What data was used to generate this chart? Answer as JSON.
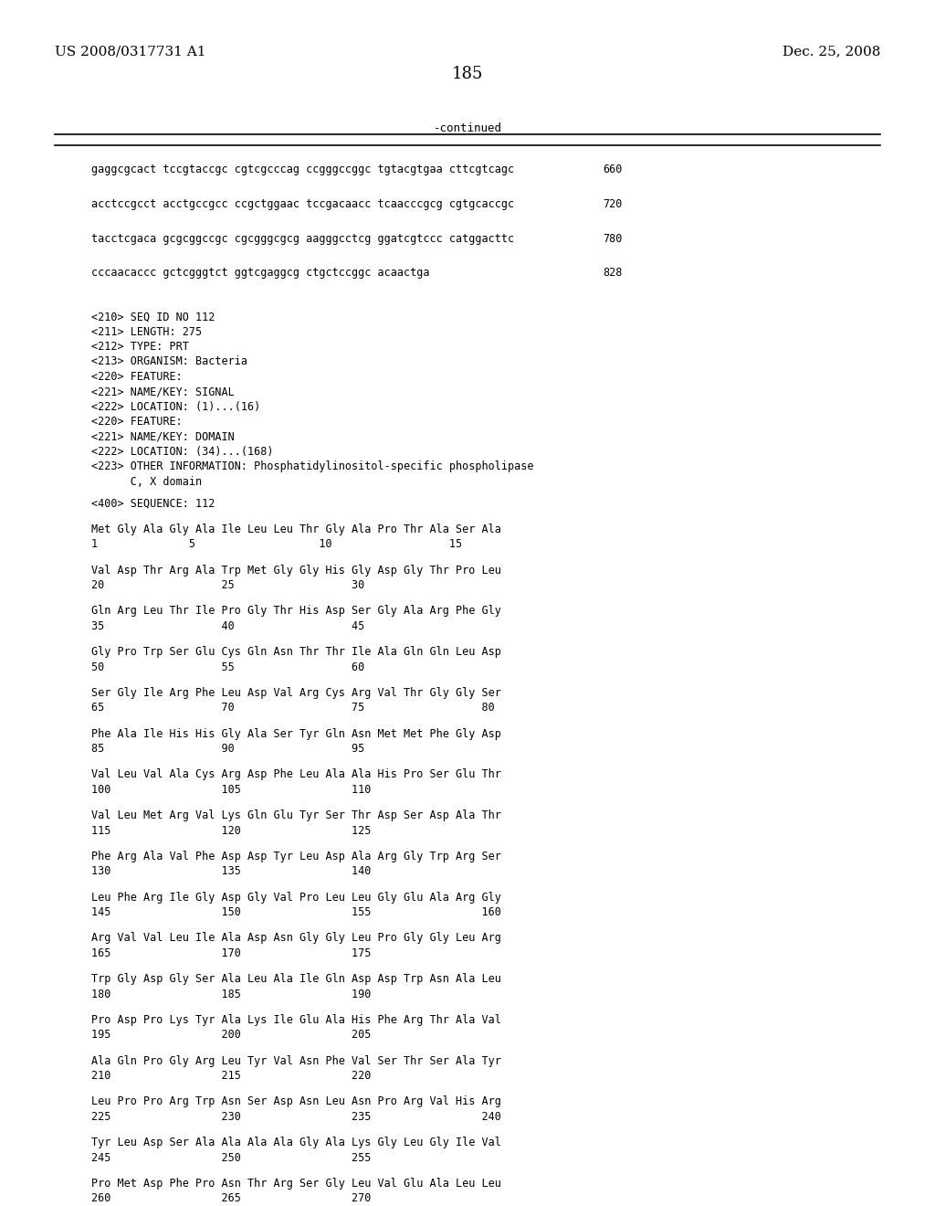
{
  "header_left": "US 2008/0317731 A1",
  "header_right": "Dec. 25, 2008",
  "page_number": "185",
  "continued_label": "-continued",
  "background_color": "#ffffff",
  "text_color": "#000000",
  "font_size_header": 11,
  "font_size_body": 9,
  "font_size_page": 13,
  "nucleotide_lines": [
    {
      "text": "gaggcgcact tccgtaccgc cgtcgcccag ccgggccggc tgtacgtgaa cttcgtcagc",
      "num": "660"
    },
    {
      "text": "acctccgcct acctgccgcc ccgctggaac tccgacaacc tcaacccgcg cgtgcaccgc",
      "num": "720"
    },
    {
      "text": "tacctcgaca gcgcggccgc cgcgggcgcg aagggcctcg ggatcgtccc catggacttc",
      "num": "780"
    },
    {
      "text": "cccaacaccc gctcgggtct ggtcgaggcg ctgctccggc acaactga",
      "num": "828"
    }
  ],
  "metadata_lines": [
    "<210> SEQ ID NO 112",
    "<211> LENGTH: 275",
    "<212> TYPE: PRT",
    "<213> ORGANISM: Bacteria",
    "<220> FEATURE:",
    "<221> NAME/KEY: SIGNAL",
    "<222> LOCATION: (1)...(16)",
    "<220> FEATURE:",
    "<221> NAME/KEY: DOMAIN",
    "<222> LOCATION: (34)...(168)",
    "<223> OTHER INFORMATION: Phosphatidylinositol-specific phospholipase",
    "      C, X domain"
  ],
  "sequence_label": "<400> SEQUENCE: 112",
  "sequence_blocks": [
    {
      "aa_line": "Met Gly Ala Gly Ala Ile Leu Leu Thr Gly Ala Pro Thr Ala Ser Ala",
      "num_line": "1              5                   10                  15"
    },
    {
      "aa_line": "Val Asp Thr Arg Ala Trp Met Gly Gly His Gly Asp Gly Thr Pro Leu",
      "num_line": "20                  25                  30"
    },
    {
      "aa_line": "Gln Arg Leu Thr Ile Pro Gly Thr His Asp Ser Gly Ala Arg Phe Gly",
      "num_line": "35                  40                  45"
    },
    {
      "aa_line": "Gly Pro Trp Ser Glu Cys Gln Asn Thr Thr Ile Ala Gln Gln Leu Asp",
      "num_line": "50                  55                  60"
    },
    {
      "aa_line": "Ser Gly Ile Arg Phe Leu Asp Val Arg Cys Arg Val Thr Gly Gly Ser",
      "num_line": "65                  70                  75                  80"
    },
    {
      "aa_line": "Phe Ala Ile His His Gly Ala Ser Tyr Gln Asn Met Met Phe Gly Asp",
      "num_line": "85                  90                  95"
    },
    {
      "aa_line": "Val Leu Val Ala Cys Arg Asp Phe Leu Ala Ala His Pro Ser Glu Thr",
      "num_line": "100                 105                 110"
    },
    {
      "aa_line": "Val Leu Met Arg Val Lys Gln Glu Tyr Ser Thr Asp Ser Asp Ala Thr",
      "num_line": "115                 120                 125"
    },
    {
      "aa_line": "Phe Arg Ala Val Phe Asp Asp Tyr Leu Asp Ala Arg Gly Trp Arg Ser",
      "num_line": "130                 135                 140"
    },
    {
      "aa_line": "Leu Phe Arg Ile Gly Asp Gly Val Pro Leu Leu Gly Glu Ala Arg Gly",
      "num_line": "145                 150                 155                 160"
    },
    {
      "aa_line": "Arg Val Val Leu Ile Ala Asp Asn Gly Gly Leu Pro Gly Gly Leu Arg",
      "num_line": "165                 170                 175"
    },
    {
      "aa_line": "Trp Gly Asp Gly Ser Ala Leu Ala Ile Gln Asp Asp Trp Asn Ala Leu",
      "num_line": "180                 185                 190"
    },
    {
      "aa_line": "Pro Asp Pro Lys Tyr Ala Lys Ile Glu Ala His Phe Arg Thr Ala Val",
      "num_line": "195                 200                 205"
    },
    {
      "aa_line": "Ala Gln Pro Gly Arg Leu Tyr Val Asn Phe Val Ser Thr Ser Ala Tyr",
      "num_line": "210                 215                 220"
    },
    {
      "aa_line": "Leu Pro Pro Arg Trp Asn Ser Asp Asn Leu Asn Pro Arg Val His Arg",
      "num_line": "225                 230                 235                 240"
    },
    {
      "aa_line": "Tyr Leu Asp Ser Ala Ala Ala Ala Gly Ala Lys Gly Leu Gly Ile Val",
      "num_line": "245                 250                 255"
    },
    {
      "aa_line": "Pro Met Asp Phe Pro Asn Thr Arg Ser Gly Leu Val Glu Ala Leu Leu",
      "num_line": "260                 265                 270"
    }
  ]
}
